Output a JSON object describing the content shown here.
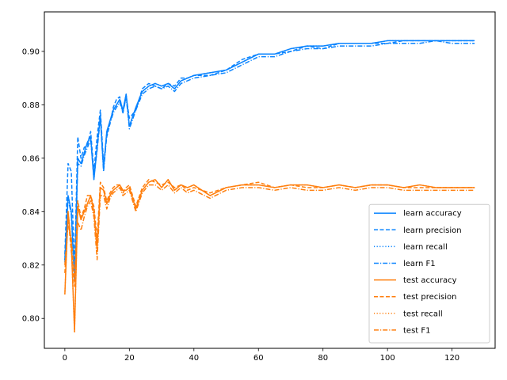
{
  "chart_data": {
    "type": "line",
    "title": "",
    "xlabel": "",
    "ylabel": "",
    "xlim": [
      -6.35,
      133.35
    ],
    "ylim": [
      0.7888,
      0.9148
    ],
    "xticks": [
      0,
      20,
      40,
      60,
      80,
      100,
      120
    ],
    "yticks": [
      0.8,
      0.82,
      0.84,
      0.86,
      0.88,
      0.9
    ],
    "ytick_labels": [
      "0.80",
      "0.82",
      "0.84",
      "0.86",
      "0.88",
      "0.90"
    ],
    "grid": false,
    "legend_position": "lower-right",
    "colors": {
      "learn": "#0a84ff",
      "test": "#ff7f0e"
    },
    "x": [
      0,
      1,
      2,
      3,
      4,
      5,
      6,
      7,
      8,
      9,
      10,
      11,
      12,
      13,
      14,
      15,
      16,
      17,
      18,
      19,
      20,
      22,
      24,
      26,
      28,
      30,
      32,
      34,
      36,
      38,
      40,
      45,
      50,
      55,
      60,
      65,
      70,
      75,
      80,
      85,
      90,
      95,
      100,
      105,
      110,
      115,
      120,
      127
    ],
    "series": [
      {
        "name": "learn accuracy",
        "style": "solid",
        "color_key": "learn",
        "values": [
          0.822,
          0.846,
          0.84,
          0.814,
          0.86,
          0.858,
          0.862,
          0.866,
          0.868,
          0.852,
          0.864,
          0.876,
          0.856,
          0.87,
          0.874,
          0.878,
          0.88,
          0.882,
          0.878,
          0.884,
          0.872,
          0.879,
          0.885,
          0.887,
          0.888,
          0.887,
          0.888,
          0.886,
          0.889,
          0.89,
          0.891,
          0.892,
          0.893,
          0.896,
          0.899,
          0.899,
          0.901,
          0.902,
          0.902,
          0.903,
          0.903,
          0.903,
          0.904,
          0.904,
          0.904,
          0.904,
          0.904,
          0.904
        ]
      },
      {
        "name": "learn precision",
        "style": "dashed",
        "color_key": "learn",
        "values": [
          0.824,
          0.858,
          0.855,
          0.818,
          0.868,
          0.86,
          0.864,
          0.865,
          0.87,
          0.855,
          0.868,
          0.878,
          0.858,
          0.868,
          0.873,
          0.879,
          0.882,
          0.883,
          0.877,
          0.883,
          0.875,
          0.878,
          0.886,
          0.888,
          0.887,
          0.886,
          0.888,
          0.887,
          0.89,
          0.89,
          0.891,
          0.891,
          0.893,
          0.897,
          0.899,
          0.899,
          0.9,
          0.902,
          0.901,
          0.903,
          0.903,
          0.903,
          0.903,
          0.904,
          0.904,
          0.904,
          0.904,
          0.904
        ]
      },
      {
        "name": "learn recall",
        "style": "dotted",
        "color_key": "learn",
        "values": [
          0.822,
          0.846,
          0.84,
          0.814,
          0.86,
          0.858,
          0.862,
          0.866,
          0.868,
          0.852,
          0.864,
          0.876,
          0.856,
          0.87,
          0.874,
          0.878,
          0.88,
          0.882,
          0.878,
          0.884,
          0.872,
          0.879,
          0.885,
          0.887,
          0.888,
          0.887,
          0.888,
          0.886,
          0.889,
          0.89,
          0.891,
          0.892,
          0.893,
          0.896,
          0.899,
          0.899,
          0.901,
          0.902,
          0.902,
          0.903,
          0.903,
          0.903,
          0.904,
          0.904,
          0.904,
          0.904,
          0.904,
          0.904
        ]
      },
      {
        "name": "learn F1",
        "style": "dashdot",
        "color_key": "learn",
        "values": [
          0.821,
          0.845,
          0.839,
          0.815,
          0.858,
          0.857,
          0.861,
          0.864,
          0.867,
          0.853,
          0.863,
          0.875,
          0.855,
          0.869,
          0.873,
          0.877,
          0.879,
          0.881,
          0.877,
          0.883,
          0.871,
          0.878,
          0.884,
          0.886,
          0.887,
          0.886,
          0.887,
          0.885,
          0.888,
          0.889,
          0.89,
          0.891,
          0.892,
          0.895,
          0.898,
          0.898,
          0.9,
          0.901,
          0.901,
          0.902,
          0.902,
          0.902,
          0.903,
          0.903,
          0.903,
          0.904,
          0.903,
          0.903
        ]
      },
      {
        "name": "test accuracy",
        "style": "solid",
        "color_key": "test",
        "values": [
          0.809,
          0.84,
          0.828,
          0.795,
          0.842,
          0.837,
          0.84,
          0.843,
          0.846,
          0.84,
          0.826,
          0.849,
          0.848,
          0.843,
          0.846,
          0.848,
          0.849,
          0.85,
          0.848,
          0.848,
          0.849,
          0.841,
          0.848,
          0.851,
          0.852,
          0.849,
          0.852,
          0.848,
          0.85,
          0.849,
          0.85,
          0.846,
          0.849,
          0.85,
          0.85,
          0.849,
          0.85,
          0.85,
          0.849,
          0.85,
          0.849,
          0.85,
          0.85,
          0.849,
          0.85,
          0.849,
          0.849,
          0.849
        ]
      },
      {
        "name": "test precision",
        "style": "dashed",
        "color_key": "test",
        "values": [
          0.817,
          0.838,
          0.825,
          0.812,
          0.844,
          0.838,
          0.841,
          0.846,
          0.846,
          0.842,
          0.83,
          0.851,
          0.849,
          0.844,
          0.847,
          0.849,
          0.85,
          0.85,
          0.847,
          0.849,
          0.85,
          0.842,
          0.849,
          0.852,
          0.851,
          0.85,
          0.851,
          0.849,
          0.85,
          0.848,
          0.849,
          0.847,
          0.849,
          0.85,
          0.851,
          0.849,
          0.85,
          0.849,
          0.849,
          0.85,
          0.849,
          0.85,
          0.85,
          0.849,
          0.849,
          0.849,
          0.849,
          0.849
        ]
      },
      {
        "name": "test recall",
        "style": "dotted",
        "color_key": "test",
        "values": [
          0.809,
          0.84,
          0.828,
          0.795,
          0.842,
          0.837,
          0.84,
          0.843,
          0.846,
          0.84,
          0.826,
          0.849,
          0.848,
          0.843,
          0.846,
          0.848,
          0.849,
          0.85,
          0.848,
          0.848,
          0.849,
          0.841,
          0.848,
          0.851,
          0.852,
          0.849,
          0.852,
          0.848,
          0.85,
          0.849,
          0.85,
          0.846,
          0.849,
          0.85,
          0.85,
          0.849,
          0.85,
          0.85,
          0.849,
          0.85,
          0.849,
          0.85,
          0.85,
          0.849,
          0.85,
          0.849,
          0.849,
          0.849
        ]
      },
      {
        "name": "test F1",
        "style": "dashdot",
        "color_key": "test",
        "values": [
          0.82,
          0.835,
          0.83,
          0.815,
          0.836,
          0.833,
          0.838,
          0.842,
          0.844,
          0.838,
          0.822,
          0.846,
          0.846,
          0.841,
          0.845,
          0.847,
          0.848,
          0.849,
          0.846,
          0.847,
          0.848,
          0.84,
          0.847,
          0.85,
          0.85,
          0.848,
          0.85,
          0.847,
          0.849,
          0.847,
          0.848,
          0.845,
          0.848,
          0.849,
          0.849,
          0.848,
          0.849,
          0.848,
          0.848,
          0.849,
          0.848,
          0.849,
          0.849,
          0.848,
          0.848,
          0.848,
          0.848,
          0.848
        ]
      }
    ]
  }
}
